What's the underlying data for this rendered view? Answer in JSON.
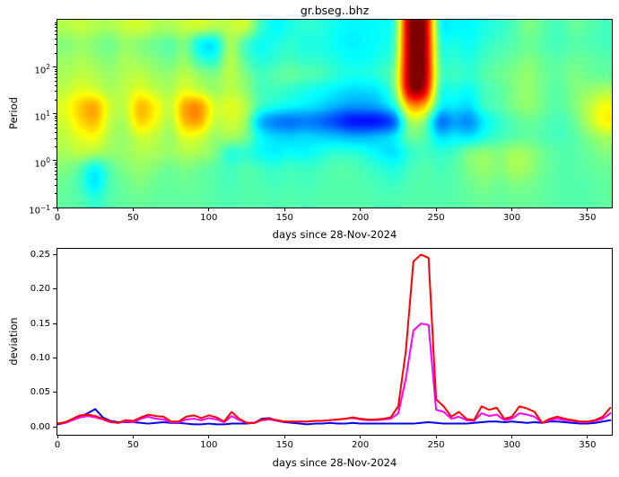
{
  "figure": {
    "title": "gr.bseg..bhz",
    "background": "#ffffff",
    "text_color": "#000000"
  },
  "chart_data": [
    {
      "type": "heatmap",
      "title": "gr.bseg..bhz",
      "xlabel": "days since 28-Nov-2024",
      "ylabel": "Period",
      "xlim": [
        0,
        366
      ],
      "ylim": [
        0.1,
        1030
      ],
      "yscale": "log",
      "colormap": "jet",
      "grid": false,
      "legend": false,
      "x_ticks": [
        0,
        50,
        100,
        150,
        200,
        250,
        300,
        350
      ],
      "y_ticks": [
        {
          "value": 100,
          "base": "10",
          "exp": "2"
        },
        {
          "value": 10,
          "base": "10",
          "exp": "1"
        },
        {
          "value": 1,
          "base": "10",
          "exp": "0"
        },
        {
          "value": 0.1,
          "base": "10",
          "exp": "−1"
        }
      ],
      "x_bin_centers_days": [
        5,
        15,
        25,
        35,
        45,
        55,
        65,
        75,
        85,
        95,
        105,
        115,
        125,
        135,
        145,
        155,
        165,
        175,
        185,
        195,
        205,
        215,
        225,
        235,
        245,
        255,
        265,
        275,
        285,
        295,
        305,
        315,
        325,
        335,
        345,
        355,
        365
      ],
      "period_row_centers": [
        730,
        335,
        155,
        71,
        33,
        15,
        7,
        3.2,
        1.5,
        0.68,
        0.31,
        0.15
      ],
      "values_norm_0to1": [
        [
          0.55,
          0.57,
          0.55,
          0.54,
          0.57,
          0.58,
          0.55,
          0.54,
          0.57,
          0.58,
          0.55,
          0.56,
          0.58,
          0.44,
          0.37,
          0.4,
          0.42,
          0.41,
          0.39,
          0.37,
          0.37,
          0.38,
          0.42,
          1.0,
          1.0,
          0.39,
          0.37,
          0.37,
          0.4,
          0.42,
          0.45,
          0.5,
          0.46,
          0.44,
          0.48,
          0.46,
          0.44
        ],
        [
          0.5,
          0.52,
          0.5,
          0.48,
          0.52,
          0.5,
          0.48,
          0.46,
          0.5,
          0.36,
          0.35,
          0.55,
          0.44,
          0.38,
          0.4,
          0.42,
          0.4,
          0.4,
          0.38,
          0.36,
          0.37,
          0.38,
          0.44,
          1.0,
          1.0,
          0.42,
          0.4,
          0.38,
          0.42,
          0.44,
          0.46,
          0.48,
          0.45,
          0.44,
          0.46,
          0.45,
          0.44
        ],
        [
          0.52,
          0.54,
          0.52,
          0.5,
          0.54,
          0.52,
          0.5,
          0.48,
          0.52,
          0.42,
          0.4,
          0.56,
          0.46,
          0.4,
          0.42,
          0.44,
          0.42,
          0.42,
          0.4,
          0.38,
          0.38,
          0.4,
          0.46,
          1.0,
          1.0,
          0.44,
          0.42,
          0.4,
          0.44,
          0.46,
          0.48,
          0.5,
          0.47,
          0.46,
          0.48,
          0.47,
          0.46
        ],
        [
          0.54,
          0.56,
          0.55,
          0.52,
          0.55,
          0.56,
          0.53,
          0.52,
          0.56,
          0.52,
          0.5,
          0.56,
          0.5,
          0.44,
          0.46,
          0.48,
          0.46,
          0.45,
          0.42,
          0.4,
          0.4,
          0.42,
          0.5,
          1.0,
          1.0,
          0.46,
          0.44,
          0.42,
          0.46,
          0.48,
          0.5,
          0.52,
          0.48,
          0.47,
          0.5,
          0.48,
          0.47
        ],
        [
          0.56,
          0.6,
          0.58,
          0.54,
          0.56,
          0.6,
          0.56,
          0.54,
          0.6,
          0.56,
          0.52,
          0.56,
          0.52,
          0.44,
          0.44,
          0.42,
          0.4,
          0.38,
          0.36,
          0.34,
          0.34,
          0.36,
          0.48,
          0.97,
          0.95,
          0.42,
          0.4,
          0.38,
          0.44,
          0.46,
          0.5,
          0.52,
          0.48,
          0.46,
          0.5,
          0.52,
          0.54
        ],
        [
          0.6,
          0.68,
          0.72,
          0.58,
          0.56,
          0.7,
          0.64,
          0.56,
          0.72,
          0.74,
          0.58,
          0.6,
          0.56,
          0.44,
          0.4,
          0.38,
          0.36,
          0.34,
          0.3,
          0.28,
          0.28,
          0.3,
          0.4,
          0.72,
          0.7,
          0.38,
          0.36,
          0.34,
          0.44,
          0.46,
          0.5,
          0.52,
          0.48,
          0.46,
          0.5,
          0.56,
          0.62
        ],
        [
          0.58,
          0.66,
          0.7,
          0.56,
          0.54,
          0.68,
          0.62,
          0.54,
          0.7,
          0.72,
          0.56,
          0.58,
          0.54,
          0.3,
          0.24,
          0.22,
          0.24,
          0.22,
          0.18,
          0.13,
          0.12,
          0.13,
          0.2,
          0.55,
          0.5,
          0.22,
          0.28,
          0.25,
          0.36,
          0.42,
          0.46,
          0.48,
          0.46,
          0.44,
          0.48,
          0.56,
          0.64
        ],
        [
          0.56,
          0.6,
          0.62,
          0.54,
          0.52,
          0.58,
          0.56,
          0.52,
          0.6,
          0.58,
          0.52,
          0.54,
          0.5,
          0.38,
          0.34,
          0.33,
          0.34,
          0.33,
          0.32,
          0.3,
          0.3,
          0.32,
          0.36,
          0.48,
          0.46,
          0.34,
          0.36,
          0.35,
          0.4,
          0.44,
          0.46,
          0.47,
          0.45,
          0.44,
          0.46,
          0.5,
          0.54
        ],
        [
          0.54,
          0.56,
          0.55,
          0.52,
          0.52,
          0.55,
          0.54,
          0.52,
          0.55,
          0.54,
          0.5,
          0.4,
          0.42,
          0.38,
          0.36,
          0.38,
          0.37,
          0.4,
          0.42,
          0.42,
          0.4,
          0.36,
          0.34,
          0.42,
          0.44,
          0.42,
          0.44,
          0.5,
          0.52,
          0.5,
          0.54,
          0.52,
          0.48,
          0.46,
          0.46,
          0.48,
          0.5
        ],
        [
          0.5,
          0.46,
          0.36,
          0.46,
          0.5,
          0.52,
          0.5,
          0.48,
          0.5,
          0.48,
          0.46,
          0.44,
          0.46,
          0.44,
          0.42,
          0.44,
          0.43,
          0.44,
          0.46,
          0.46,
          0.44,
          0.42,
          0.4,
          0.44,
          0.46,
          0.44,
          0.46,
          0.5,
          0.52,
          0.5,
          0.54,
          0.52,
          0.48,
          0.46,
          0.46,
          0.47,
          0.48
        ],
        [
          0.48,
          0.44,
          0.34,
          0.45,
          0.48,
          0.5,
          0.48,
          0.47,
          0.48,
          0.47,
          0.46,
          0.44,
          0.46,
          0.45,
          0.44,
          0.45,
          0.44,
          0.45,
          0.46,
          0.46,
          0.45,
          0.44,
          0.43,
          0.45,
          0.46,
          0.45,
          0.46,
          0.48,
          0.5,
          0.48,
          0.5,
          0.49,
          0.47,
          0.46,
          0.46,
          0.46,
          0.47
        ],
        [
          0.47,
          0.46,
          0.42,
          0.46,
          0.47,
          0.48,
          0.47,
          0.47,
          0.47,
          0.47,
          0.46,
          0.45,
          0.46,
          0.46,
          0.45,
          0.46,
          0.45,
          0.46,
          0.46,
          0.46,
          0.46,
          0.45,
          0.45,
          0.46,
          0.46,
          0.46,
          0.46,
          0.47,
          0.48,
          0.47,
          0.48,
          0.48,
          0.47,
          0.46,
          0.46,
          0.46,
          0.47
        ]
      ]
    },
    {
      "type": "line",
      "xlabel": "days since 28-Nov-2024",
      "ylabel": "deviation",
      "xlim": [
        0,
        366
      ],
      "ylim": [
        -0.0112,
        0.2583
      ],
      "grid": false,
      "legend": false,
      "x_ticks": [
        0,
        50,
        100,
        150,
        200,
        250,
        300,
        350
      ],
      "y_ticks": [
        {
          "value": 0.0,
          "label": "0.00"
        },
        {
          "value": 0.05,
          "label": "0.05"
        },
        {
          "value": 0.1,
          "label": "0.10"
        },
        {
          "value": 0.15,
          "label": "0.15"
        },
        {
          "value": 0.2,
          "label": "0.20"
        },
        {
          "value": 0.25,
          "label": "0.25"
        }
      ],
      "x": [
        0,
        5,
        10,
        15,
        20,
        25,
        30,
        35,
        40,
        45,
        50,
        55,
        60,
        65,
        70,
        75,
        80,
        85,
        90,
        95,
        100,
        105,
        110,
        115,
        120,
        125,
        130,
        135,
        140,
        145,
        150,
        155,
        160,
        165,
        170,
        175,
        180,
        185,
        190,
        195,
        200,
        205,
        210,
        215,
        220,
        225,
        230,
        235,
        240,
        245,
        250,
        255,
        260,
        265,
        270,
        275,
        280,
        285,
        290,
        295,
        300,
        305,
        310,
        315,
        320,
        325,
        330,
        335,
        340,
        345,
        350,
        355,
        360,
        365
      ],
      "series": [
        {
          "name": "blue",
          "color": "#0000ee",
          "values": [
            0.004,
            0.006,
            0.01,
            0.015,
            0.02,
            0.026,
            0.014,
            0.009,
            0.007,
            0.007,
            0.007,
            0.006,
            0.005,
            0.006,
            0.007,
            0.006,
            0.006,
            0.005,
            0.004,
            0.004,
            0.005,
            0.004,
            0.004,
            0.005,
            0.005,
            0.005,
            0.006,
            0.012,
            0.013,
            0.009,
            0.007,
            0.006,
            0.005,
            0.004,
            0.005,
            0.005,
            0.006,
            0.005,
            0.005,
            0.006,
            0.005,
            0.005,
            0.005,
            0.005,
            0.005,
            0.005,
            0.005,
            0.005,
            0.006,
            0.007,
            0.006,
            0.005,
            0.005,
            0.005,
            0.005,
            0.006,
            0.007,
            0.008,
            0.008,
            0.007,
            0.008,
            0.007,
            0.006,
            0.007,
            0.006,
            0.008,
            0.008,
            0.007,
            0.006,
            0.005,
            0.005,
            0.006,
            0.008,
            0.01
          ]
        },
        {
          "name": "magenta",
          "color": "#ff00ff",
          "values": [
            0.005,
            0.006,
            0.01,
            0.014,
            0.016,
            0.014,
            0.011,
            0.007,
            0.006,
            0.008,
            0.007,
            0.012,
            0.015,
            0.012,
            0.011,
            0.007,
            0.007,
            0.011,
            0.012,
            0.01,
            0.013,
            0.011,
            0.007,
            0.016,
            0.01,
            0.006,
            0.006,
            0.01,
            0.011,
            0.009,
            0.008,
            0.008,
            0.008,
            0.008,
            0.009,
            0.009,
            0.01,
            0.011,
            0.012,
            0.013,
            0.011,
            0.01,
            0.01,
            0.011,
            0.012,
            0.02,
            0.07,
            0.14,
            0.15,
            0.148,
            0.025,
            0.022,
            0.012,
            0.015,
            0.01,
            0.009,
            0.02,
            0.016,
            0.018,
            0.01,
            0.012,
            0.02,
            0.018,
            0.015,
            0.006,
            0.01,
            0.012,
            0.01,
            0.009,
            0.007,
            0.007,
            0.009,
            0.012,
            0.02
          ]
        },
        {
          "name": "red",
          "color": "#ff0000",
          "values": [
            0.005,
            0.007,
            0.012,
            0.017,
            0.018,
            0.016,
            0.012,
            0.008,
            0.006,
            0.01,
            0.009,
            0.014,
            0.018,
            0.016,
            0.015,
            0.008,
            0.008,
            0.015,
            0.017,
            0.013,
            0.017,
            0.014,
            0.008,
            0.022,
            0.012,
            0.006,
            0.006,
            0.011,
            0.012,
            0.01,
            0.008,
            0.008,
            0.008,
            0.008,
            0.009,
            0.009,
            0.01,
            0.011,
            0.012,
            0.014,
            0.012,
            0.011,
            0.011,
            0.012,
            0.014,
            0.03,
            0.11,
            0.24,
            0.25,
            0.245,
            0.04,
            0.03,
            0.015,
            0.022,
            0.012,
            0.01,
            0.03,
            0.025,
            0.028,
            0.012,
            0.015,
            0.03,
            0.027,
            0.022,
            0.006,
            0.012,
            0.015,
            0.012,
            0.01,
            0.008,
            0.008,
            0.01,
            0.015,
            0.028
          ]
        }
      ]
    }
  ]
}
